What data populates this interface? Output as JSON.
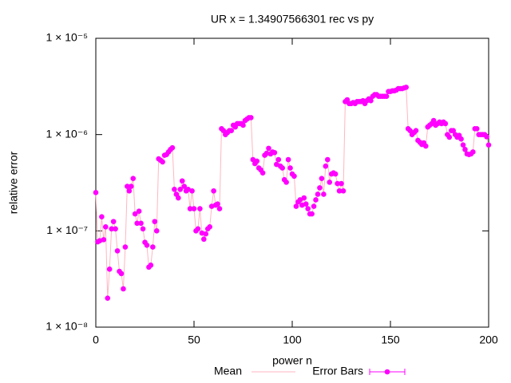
{
  "chart_data": {
    "type": "line",
    "title": "UR x = 1.34907566301 rec vs py",
    "xlabel": "power n",
    "ylabel": "relative error",
    "xlim": [
      0,
      200
    ],
    "xticks": [
      0,
      50,
      100,
      150,
      200
    ],
    "ylim": [
      1e-08,
      1e-05
    ],
    "ylog": true,
    "yticks": [
      {
        "value": 1e-08,
        "label": "1 × 10⁻⁸"
      },
      {
        "value": 1e-07,
        "label": "1 × 10⁻⁷"
      },
      {
        "value": 1e-06,
        "label": "1 × 10⁻⁶"
      },
      {
        "value": 1e-05,
        "label": "1 × 10⁻⁵"
      }
    ],
    "legend": "bottom",
    "x": [
      0,
      1,
      2,
      3,
      4,
      5,
      6,
      7,
      8,
      9,
      10,
      11,
      12,
      13,
      14,
      15,
      16,
      17,
      18,
      19,
      20,
      21,
      22,
      23,
      24,
      25,
      26,
      27,
      28,
      29,
      30,
      31,
      32,
      33,
      34,
      35,
      36,
      37,
      38,
      39,
      40,
      41,
      42,
      43,
      44,
      45,
      46,
      47,
      48,
      49,
      50,
      51,
      52,
      53,
      54,
      55,
      56,
      57,
      58,
      59,
      60,
      61,
      62,
      63,
      64,
      65,
      66,
      67,
      68,
      69,
      70,
      71,
      72,
      73,
      74,
      75,
      76,
      77,
      78,
      79,
      80,
      81,
      82,
      83,
      84,
      85,
      86,
      87,
      88,
      89,
      90,
      91,
      92,
      93,
      94,
      95,
      96,
      97,
      98,
      99,
      100,
      101,
      102,
      103,
      104,
      105,
      106,
      107,
      108,
      109,
      110,
      111,
      112,
      113,
      114,
      115,
      116,
      117,
      118,
      119,
      120,
      121,
      122,
      123,
      124,
      125,
      126,
      127,
      128,
      129,
      130,
      131,
      132,
      133,
      134,
      135,
      136,
      137,
      138,
      139,
      140,
      141,
      142,
      143,
      144,
      145,
      146,
      147,
      148,
      149,
      150,
      151,
      152,
      153,
      154,
      155,
      156,
      157,
      158,
      159,
      160,
      161,
      162,
      163,
      164,
      165,
      166,
      167,
      168,
      169,
      170,
      171,
      172,
      173,
      174,
      175,
      176,
      177,
      178,
      179,
      180,
      181,
      182,
      183,
      184,
      185,
      186,
      187,
      188,
      189,
      190,
      191,
      192,
      193,
      194,
      195,
      196,
      197,
      198,
      199,
      200
    ],
    "series": [
      {
        "name": "Mean",
        "color": "#ffb6c1",
        "style": "line",
        "values": [
          2.5e-07,
          7.7e-08,
          7.9e-08,
          1.4e-07,
          8.1e-08,
          1.1e-07,
          2e-08,
          4e-08,
          1.05e-07,
          1.25e-07,
          1.05e-07,
          6.2e-08,
          3.8e-08,
          3.6e-08,
          2.5e-08,
          6.8e-08,
          2.9e-07,
          2.6e-07,
          2.9e-07,
          3.5e-07,
          1.5e-07,
          1.2e-07,
          1.6e-07,
          1.2e-07,
          1.05e-07,
          7.6e-08,
          7.1e-08,
          4.2e-08,
          4.4e-08,
          6.8e-08,
          1.25e-07,
          1e-07,
          5.6e-07,
          5.4e-07,
          5.2e-07,
          6.1e-07,
          6.2e-07,
          6.6e-07,
          7e-07,
          7.3e-07,
          2.7e-07,
          2.4e-07,
          2.2e-07,
          2.7e-07,
          3.3e-07,
          2.9e-07,
          2.6e-07,
          2.7e-07,
          1.7e-07,
          2.6e-07,
          1.7e-07,
          1e-07,
          1.05e-07,
          1.7e-07,
          9.5e-08,
          8.2e-08,
          9.3e-08,
          1.05e-07,
          1.1e-07,
          1.8e-07,
          2.6e-07,
          1.85e-07,
          1.9e-07,
          1.7e-07,
          1.15e-06,
          1.1e-06,
          1e-06,
          1.05e-06,
          1.1e-06,
          1.1e-06,
          1.25e-06,
          1.2e-06,
          1.3e-06,
          1.3e-06,
          1.3e-06,
          1.25e-06,
          1.4e-06,
          1.45e-06,
          1.5e-06,
          1.5e-06,
          5.5e-07,
          5e-07,
          5.3e-07,
          4.5e-07,
          4.3e-07,
          4e-07,
          6.1e-07,
          6.4e-07,
          7.2e-07,
          6.3e-07,
          6.6e-07,
          6.5e-07,
          4.9e-07,
          5.5e-07,
          4.7e-07,
          4.5e-07,
          3.4e-07,
          3.2e-07,
          5.5e-07,
          4.5e-07,
          3.9e-07,
          3.7e-07,
          1.8e-07,
          2e-07,
          2.1e-07,
          1.85e-07,
          2.2e-07,
          1.9e-07,
          1.7e-07,
          1.5e-07,
          1.5e-07,
          1.8e-07,
          2.1e-07,
          2.4e-07,
          2.8e-07,
          3.5e-07,
          2.4e-07,
          4.7e-07,
          5.5e-07,
          3.2e-07,
          3.9e-07,
          4e-07,
          3.9e-07,
          3.1e-07,
          2.6e-07,
          3.1e-07,
          2.6e-07,
          2.2e-06,
          2.3e-06,
          2.1e-06,
          2.1e-06,
          2.15e-06,
          2.1e-06,
          2.2e-06,
          2.2e-06,
          2.2e-06,
          2.25e-06,
          2.1e-06,
          2.25e-06,
          2.35e-06,
          2.25e-06,
          2.5e-06,
          2.6e-06,
          2.6e-06,
          2.5e-06,
          2.5e-06,
          2.5e-06,
          2.5e-06,
          2.5e-06,
          2.8e-06,
          2.8e-06,
          2.85e-06,
          2.85e-06,
          2.9e-06,
          3e-06,
          3e-06,
          3e-06,
          3.05e-06,
          3.1e-06,
          1.15e-06,
          1.1e-06,
          1e-06,
          1.05e-06,
          1.1e-06,
          8.7e-07,
          8.3e-07,
          7.9e-07,
          8.2e-07,
          7.6e-07,
          1.2e-06,
          1.25e-06,
          1.3e-06,
          1.4e-06,
          1.25e-06,
          1.3e-06,
          1.35e-06,
          1.3e-06,
          1.35e-06,
          1.3e-06,
          1e-06,
          9.4e-07,
          1.1e-06,
          1.1e-06,
          1e-06,
          9.4e-07,
          9.8e-07,
          9e-07,
          7.8e-07,
          7e-07,
          6.3e-07,
          6.2e-07,
          6.3e-07,
          6.6e-07,
          1.15e-06,
          1.15e-06,
          1e-06,
          1e-06,
          1e-06,
          1e-06,
          9.5e-07,
          7.8e-07
        ]
      },
      {
        "name": "Error Bars",
        "color": "#ff00ff",
        "style": "points",
        "values": [
          2.5e-07,
          7.7e-08,
          7.9e-08,
          1.4e-07,
          8.1e-08,
          1.1e-07,
          2e-08,
          4e-08,
          1.05e-07,
          1.25e-07,
          1.05e-07,
          6.2e-08,
          3.8e-08,
          3.6e-08,
          2.5e-08,
          6.8e-08,
          2.9e-07,
          2.6e-07,
          2.9e-07,
          3.5e-07,
          1.5e-07,
          1.2e-07,
          1.6e-07,
          1.2e-07,
          1.05e-07,
          7.6e-08,
          7.1e-08,
          4.2e-08,
          4.4e-08,
          6.8e-08,
          1.25e-07,
          1e-07,
          5.6e-07,
          5.4e-07,
          5.2e-07,
          6.1e-07,
          6.2e-07,
          6.6e-07,
          7e-07,
          7.3e-07,
          2.7e-07,
          2.4e-07,
          2.2e-07,
          2.7e-07,
          3.3e-07,
          2.9e-07,
          2.6e-07,
          2.7e-07,
          1.7e-07,
          2.6e-07,
          1.7e-07,
          1e-07,
          1.05e-07,
          1.7e-07,
          9.5e-08,
          8.2e-08,
          9.3e-08,
          1.05e-07,
          1.1e-07,
          1.8e-07,
          2.6e-07,
          1.85e-07,
          1.9e-07,
          1.7e-07,
          1.15e-06,
          1.1e-06,
          1e-06,
          1.05e-06,
          1.1e-06,
          1.1e-06,
          1.25e-06,
          1.2e-06,
          1.3e-06,
          1.3e-06,
          1.3e-06,
          1.25e-06,
          1.4e-06,
          1.45e-06,
          1.5e-06,
          1.5e-06,
          5.5e-07,
          5e-07,
          5.3e-07,
          4.5e-07,
          4.3e-07,
          4e-07,
          6.1e-07,
          6.4e-07,
          7.2e-07,
          6.3e-07,
          6.6e-07,
          6.5e-07,
          4.9e-07,
          5.5e-07,
          4.7e-07,
          4.5e-07,
          3.4e-07,
          3.2e-07,
          5.5e-07,
          4.5e-07,
          3.9e-07,
          3.7e-07,
          1.8e-07,
          2e-07,
          2.1e-07,
          1.85e-07,
          2.2e-07,
          1.9e-07,
          1.7e-07,
          1.5e-07,
          1.5e-07,
          1.8e-07,
          2.1e-07,
          2.4e-07,
          2.8e-07,
          3.5e-07,
          2.4e-07,
          4.7e-07,
          5.5e-07,
          3.2e-07,
          3.9e-07,
          4e-07,
          3.9e-07,
          3.1e-07,
          2.6e-07,
          3.1e-07,
          2.6e-07,
          2.2e-06,
          2.3e-06,
          2.1e-06,
          2.1e-06,
          2.15e-06,
          2.1e-06,
          2.2e-06,
          2.2e-06,
          2.2e-06,
          2.25e-06,
          2.1e-06,
          2.25e-06,
          2.35e-06,
          2.25e-06,
          2.5e-06,
          2.6e-06,
          2.6e-06,
          2.5e-06,
          2.5e-06,
          2.5e-06,
          2.5e-06,
          2.5e-06,
          2.8e-06,
          2.8e-06,
          2.85e-06,
          2.85e-06,
          2.9e-06,
          3e-06,
          3e-06,
          3e-06,
          3.05e-06,
          3.1e-06,
          1.15e-06,
          1.1e-06,
          1e-06,
          1.05e-06,
          1.1e-06,
          8.7e-07,
          8.3e-07,
          7.9e-07,
          8.2e-07,
          7.6e-07,
          1.2e-06,
          1.25e-06,
          1.3e-06,
          1.4e-06,
          1.25e-06,
          1.3e-06,
          1.35e-06,
          1.3e-06,
          1.35e-06,
          1.3e-06,
          1e-06,
          9.4e-07,
          1.1e-06,
          1.1e-06,
          1e-06,
          9.4e-07,
          9.8e-07,
          9e-07,
          7.8e-07,
          7e-07,
          6.3e-07,
          6.2e-07,
          6.3e-07,
          6.6e-07,
          1.15e-06,
          1.15e-06,
          1e-06,
          1e-06,
          1e-06,
          1e-06,
          9.5e-07,
          7.8e-07
        ]
      }
    ]
  }
}
